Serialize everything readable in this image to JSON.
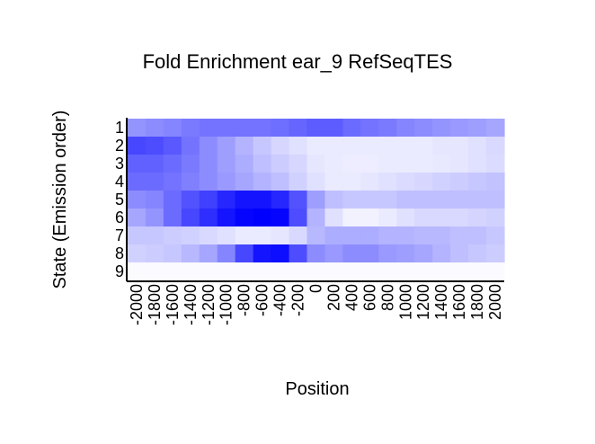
{
  "chart_data": {
    "type": "heatmap",
    "title": "Fold Enrichment ear_9 RefSeqTES",
    "xlabel": "Position",
    "ylabel": "State (Emission order)",
    "x": [
      -2000,
      -1800,
      -1600,
      -1400,
      -1200,
      -1000,
      -800,
      -600,
      -400,
      -200,
      0,
      200,
      400,
      600,
      800,
      1000,
      1200,
      1400,
      1600,
      1800,
      2000
    ],
    "x_tick_labels": [
      "-2000",
      "-1800",
      "-1600",
      "-1400",
      "-1200",
      "-1000",
      "-800",
      "-600",
      "-400",
      "-200",
      "0",
      "200",
      "400",
      "600",
      "800",
      "1000",
      "1200",
      "1400",
      "1600",
      "1800",
      "2000"
    ],
    "y": [
      "1",
      "2",
      "3",
      "4",
      "5",
      "6",
      "7",
      "8",
      "9"
    ],
    "color_low": "#ffffff",
    "color_high": "#0000ff",
    "values": [
      [
        0.42,
        0.45,
        0.48,
        0.52,
        0.55,
        0.55,
        0.55,
        0.55,
        0.57,
        0.6,
        0.64,
        0.64,
        0.58,
        0.55,
        0.52,
        0.48,
        0.45,
        0.42,
        0.4,
        0.38,
        0.35
      ],
      [
        0.72,
        0.7,
        0.65,
        0.55,
        0.45,
        0.38,
        0.3,
        0.22,
        0.16,
        0.12,
        0.08,
        0.08,
        0.08,
        0.08,
        0.08,
        0.08,
        0.08,
        0.1,
        0.1,
        0.12,
        0.15
      ],
      [
        0.62,
        0.62,
        0.58,
        0.52,
        0.45,
        0.38,
        0.32,
        0.25,
        0.2,
        0.16,
        0.1,
        0.08,
        0.07,
        0.07,
        0.08,
        0.08,
        0.08,
        0.09,
        0.1,
        0.12,
        0.14
      ],
      [
        0.58,
        0.58,
        0.55,
        0.5,
        0.45,
        0.4,
        0.35,
        0.3,
        0.25,
        0.18,
        0.12,
        0.08,
        0.08,
        0.1,
        0.12,
        0.14,
        0.16,
        0.18,
        0.2,
        0.22,
        0.24
      ],
      [
        0.45,
        0.48,
        0.58,
        0.68,
        0.75,
        0.85,
        0.92,
        0.92,
        0.85,
        0.68,
        0.38,
        0.25,
        0.22,
        0.22,
        0.22,
        0.25,
        0.25,
        0.25,
        0.25,
        0.25,
        0.25
      ],
      [
        0.35,
        0.42,
        0.58,
        0.72,
        0.82,
        0.92,
        0.98,
        1.0,
        0.98,
        0.7,
        0.3,
        0.12,
        0.05,
        0.05,
        0.08,
        0.12,
        0.15,
        0.15,
        0.15,
        0.17,
        0.18
      ],
      [
        0.22,
        0.22,
        0.2,
        0.18,
        0.15,
        0.12,
        0.08,
        0.08,
        0.1,
        0.15,
        0.28,
        0.32,
        0.32,
        0.32,
        0.3,
        0.3,
        0.28,
        0.28,
        0.25,
        0.25,
        0.22
      ],
      [
        0.18,
        0.2,
        0.22,
        0.28,
        0.35,
        0.48,
        0.72,
        0.92,
        0.95,
        0.7,
        0.45,
        0.4,
        0.45,
        0.45,
        0.4,
        0.38,
        0.35,
        0.3,
        0.25,
        0.22,
        0.2
      ],
      [
        0.02,
        0.02,
        0.02,
        0.02,
        0.02,
        0.02,
        0.02,
        0.02,
        0.02,
        0.02,
        0.02,
        0.02,
        0.02,
        0.02,
        0.02,
        0.02,
        0.02,
        0.02,
        0.02,
        0.02,
        0.02
      ]
    ]
  }
}
